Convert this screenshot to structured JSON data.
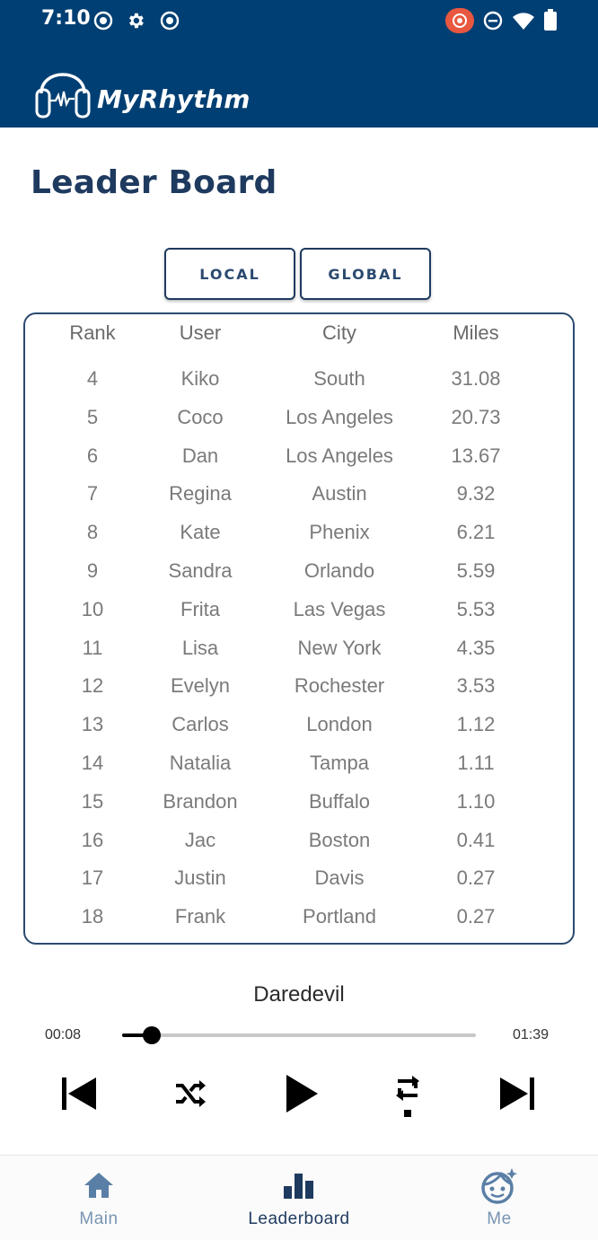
{
  "status_bar": {
    "time": "7:10"
  },
  "app": {
    "title": "MyRhythm"
  },
  "page": {
    "title": "Leader Board"
  },
  "toggle": {
    "local_label": "LOCAL",
    "global_label": "GLOBAL"
  },
  "leaderboard": {
    "columns": [
      "Rank",
      "User",
      "City",
      "Miles"
    ],
    "rows": [
      {
        "rank": "4",
        "user": "Kiko",
        "city": "South",
        "miles": "31.08"
      },
      {
        "rank": "5",
        "user": "Coco",
        "city": "Los Angeles",
        "miles": "20.73"
      },
      {
        "rank": "6",
        "user": "Dan",
        "city": "Los Angeles",
        "miles": "13.67"
      },
      {
        "rank": "7",
        "user": "Regina",
        "city": "Austin",
        "miles": "9.32"
      },
      {
        "rank": "8",
        "user": "Kate",
        "city": "Phenix",
        "miles": "6.21"
      },
      {
        "rank": "9",
        "user": "Sandra",
        "city": "Orlando",
        "miles": "5.59"
      },
      {
        "rank": "10",
        "user": "Frita",
        "city": "Las Vegas",
        "miles": "5.53"
      },
      {
        "rank": "11",
        "user": "Lisa",
        "city": "New York",
        "miles": "4.35"
      },
      {
        "rank": "12",
        "user": "Evelyn",
        "city": "Rochester",
        "miles": "3.53"
      },
      {
        "rank": "13",
        "user": "Carlos",
        "city": "London",
        "miles": "1.12"
      },
      {
        "rank": "14",
        "user": "Natalia",
        "city": "Tampa",
        "miles": "1.11"
      },
      {
        "rank": "15",
        "user": "Brandon",
        "city": "Buffalo",
        "miles": "1.10"
      },
      {
        "rank": "16",
        "user": "Jac",
        "city": "Boston",
        "miles": "0.41"
      },
      {
        "rank": "17",
        "user": "Justin",
        "city": "Davis",
        "miles": "0.27"
      },
      {
        "rank": "18",
        "user": "Frank",
        "city": "Portland",
        "miles": "0.27"
      }
    ]
  },
  "player": {
    "song": "Daredevil",
    "elapsed": "00:08",
    "duration": "01:39",
    "progress_fraction": 0.085
  },
  "bottom_nav": {
    "items": [
      {
        "label": "Main",
        "icon": "home-icon"
      },
      {
        "label": "Leaderboard",
        "icon": "leaderboard-icon"
      },
      {
        "label": "Me",
        "icon": "face-icon"
      }
    ],
    "active": "Leaderboard"
  },
  "colors": {
    "brand_dark": "#003f73",
    "title": "#1e3a5f",
    "nav_inactive": "#7895b2",
    "record_badge": "#e8573f"
  }
}
